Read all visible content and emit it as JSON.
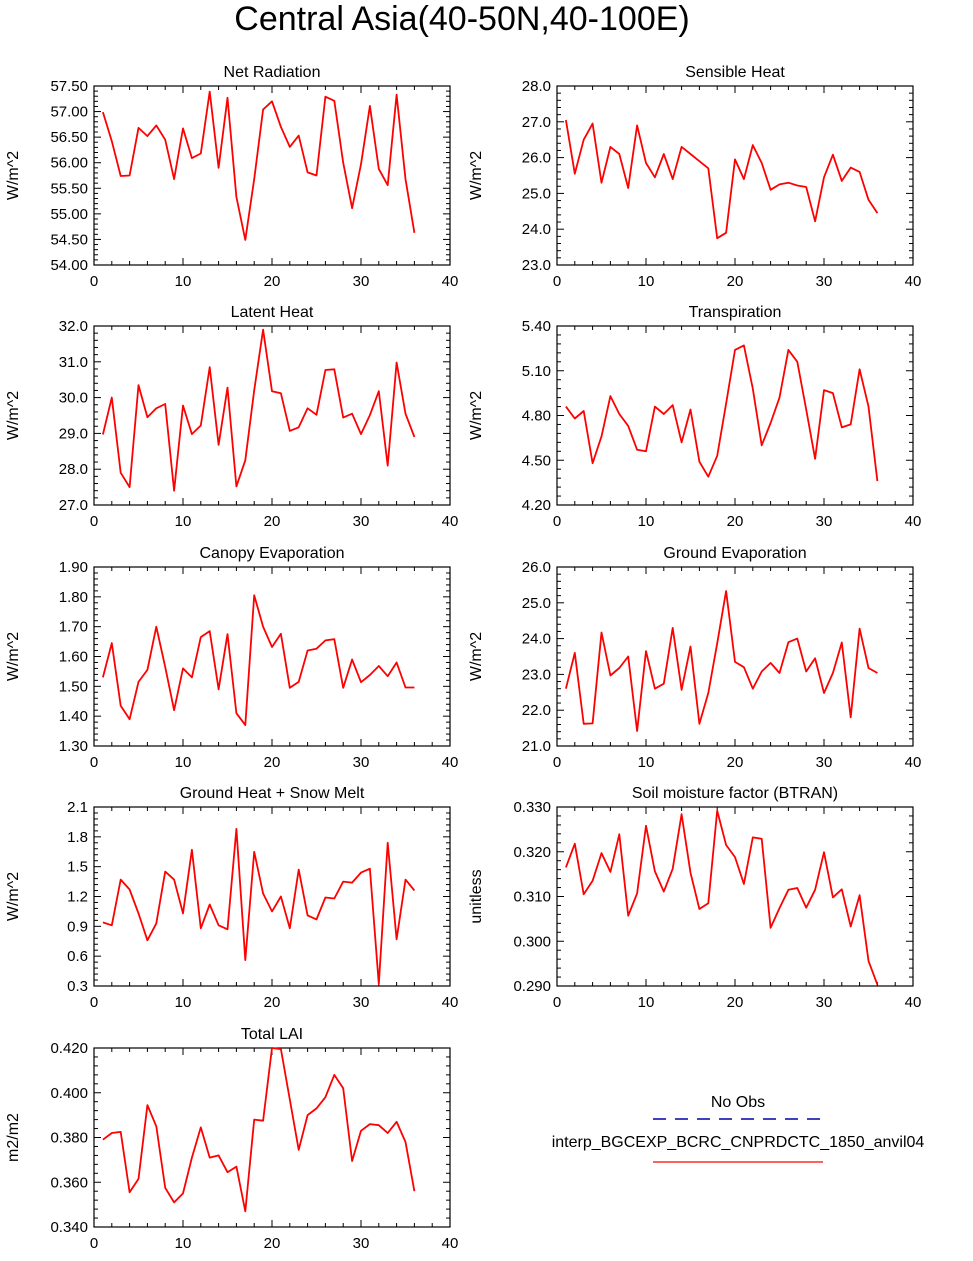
{
  "title": "Central Asia(40-50N,40-100E)",
  "line_color": "#ff0000",
  "legend": {
    "entries": [
      {
        "label": "No Obs",
        "color": "#0000aa",
        "style": "dashed"
      },
      {
        "label": "interp_BGCEXP_BCRC_CNPRDCTC_1850_anvil04",
        "color": "#ff0000",
        "style": "solid"
      }
    ]
  },
  "chart_data": [
    {
      "type": "line",
      "title": "Net Radiation",
      "ylabel": "W/m^2",
      "xlim": [
        0,
        40
      ],
      "ylim": [
        54.0,
        57.5
      ],
      "xticks": [
        0,
        10,
        20,
        30,
        40
      ],
      "yticks": [
        54.0,
        54.5,
        55.0,
        55.5,
        56.0,
        56.5,
        57.0,
        57.5
      ],
      "ytick_labels": [
        "54.00",
        "54.50",
        "55.00",
        "55.50",
        "56.00",
        "56.50",
        "57.00",
        "57.50"
      ],
      "x": [
        1,
        2,
        3,
        4,
        5,
        6,
        7,
        8,
        9,
        10,
        11,
        12,
        13,
        14,
        15,
        16,
        17,
        18,
        19,
        20,
        21,
        22,
        23,
        24,
        25,
        26,
        27,
        28,
        29,
        30,
        31,
        32,
        33,
        34,
        35,
        36
      ],
      "values": [
        56.99,
        56.42,
        55.74,
        55.75,
        56.68,
        56.52,
        56.73,
        56.45,
        55.68,
        56.67,
        56.09,
        56.18,
        57.39,
        55.9,
        57.27,
        55.33,
        54.49,
        55.68,
        57.04,
        57.2,
        56.7,
        56.31,
        56.53,
        55.81,
        55.75,
        57.29,
        57.21,
        56.0,
        55.11,
        55.97,
        57.11,
        55.88,
        55.56,
        57.33,
        55.68,
        54.63
      ]
    },
    {
      "type": "line",
      "title": "Sensible Heat",
      "ylabel": "W/m^2",
      "xlim": [
        0,
        40
      ],
      "ylim": [
        23.0,
        28.0
      ],
      "xticks": [
        0,
        10,
        20,
        30,
        40
      ],
      "yticks": [
        23.0,
        24.0,
        25.0,
        26.0,
        27.0,
        28.0
      ],
      "ytick_labels": [
        "23.0",
        "24.0",
        "25.0",
        "26.0",
        "27.0",
        "28.0"
      ],
      "x": [
        1,
        2,
        3,
        4,
        5,
        6,
        7,
        8,
        9,
        10,
        11,
        12,
        13,
        14,
        15,
        16,
        17,
        18,
        19,
        20,
        21,
        22,
        23,
        24,
        25,
        26,
        27,
        28,
        29,
        30,
        31,
        32,
        33,
        34,
        35,
        36
      ],
      "values": [
        27.05,
        25.55,
        26.5,
        26.95,
        25.3,
        26.3,
        26.1,
        25.15,
        26.9,
        25.85,
        25.45,
        26.1,
        25.4,
        26.3,
        26.1,
        25.9,
        25.7,
        23.75,
        23.9,
        25.95,
        25.4,
        26.35,
        25.85,
        25.1,
        25.25,
        25.3,
        25.22,
        25.18,
        24.22,
        25.45,
        26.08,
        25.35,
        25.72,
        25.6,
        24.82,
        24.45
      ]
    },
    {
      "type": "line",
      "title": "Latent Heat",
      "ylabel": "W/m^2",
      "xlim": [
        0,
        40
      ],
      "ylim": [
        27.0,
        32.0
      ],
      "xticks": [
        0,
        10,
        20,
        30,
        40
      ],
      "yticks": [
        27.0,
        28.0,
        29.0,
        30.0,
        31.0,
        32.0
      ],
      "ytick_labels": [
        "27.0",
        "28.0",
        "29.0",
        "30.0",
        "31.0",
        "32.0"
      ],
      "x": [
        1,
        2,
        3,
        4,
        5,
        6,
        7,
        8,
        9,
        10,
        11,
        12,
        13,
        14,
        15,
        16,
        17,
        18,
        19,
        20,
        21,
        22,
        23,
        24,
        25,
        26,
        27,
        28,
        29,
        30,
        31,
        32,
        33,
        34,
        35,
        36
      ],
      "values": [
        28.97,
        30.0,
        27.9,
        27.5,
        30.35,
        29.45,
        29.7,
        29.82,
        27.4,
        29.78,
        28.98,
        29.22,
        30.85,
        28.68,
        30.28,
        27.52,
        28.25,
        30.2,
        31.9,
        30.18,
        30.12,
        29.07,
        29.17,
        29.7,
        29.52,
        30.77,
        30.79,
        29.44,
        29.55,
        28.98,
        29.51,
        30.18,
        28.1,
        30.98,
        29.55,
        28.9
      ]
    },
    {
      "type": "line",
      "title": "Transpiration",
      "ylabel": "W/m^2",
      "xlim": [
        0,
        40
      ],
      "ylim": [
        4.2,
        5.4
      ],
      "xticks": [
        0,
        10,
        20,
        30,
        40
      ],
      "yticks": [
        4.2,
        4.5,
        4.8,
        5.1,
        5.4
      ],
      "ytick_labels": [
        "4.20",
        "4.50",
        "4.80",
        "5.10",
        "5.40"
      ],
      "x": [
        1,
        2,
        3,
        4,
        5,
        6,
        7,
        8,
        9,
        10,
        11,
        12,
        13,
        14,
        15,
        16,
        17,
        18,
        19,
        20,
        21,
        22,
        23,
        24,
        25,
        26,
        27,
        28,
        29,
        30,
        31,
        32,
        33,
        34,
        35,
        36
      ],
      "values": [
        4.86,
        4.78,
        4.83,
        4.48,
        4.66,
        4.93,
        4.81,
        4.73,
        4.57,
        4.56,
        4.86,
        4.81,
        4.87,
        4.62,
        4.84,
        4.49,
        4.39,
        4.53,
        4.88,
        5.24,
        5.27,
        4.98,
        4.6,
        4.75,
        4.92,
        5.24,
        5.16,
        4.84,
        4.51,
        4.97,
        4.95,
        4.72,
        4.74,
        5.11,
        4.86,
        4.36
      ]
    },
    {
      "type": "line",
      "title": "Canopy Evaporation",
      "ylabel": "W/m^2",
      "xlim": [
        0,
        40
      ],
      "ylim": [
        1.3,
        1.9
      ],
      "xticks": [
        0,
        10,
        20,
        30,
        40
      ],
      "yticks": [
        1.3,
        1.4,
        1.5,
        1.6,
        1.7,
        1.8,
        1.9
      ],
      "ytick_labels": [
        "1.30",
        "1.40",
        "1.50",
        "1.60",
        "1.70",
        "1.80",
        "1.90"
      ],
      "x": [
        1,
        2,
        3,
        4,
        5,
        6,
        7,
        8,
        9,
        10,
        11,
        12,
        13,
        14,
        15,
        16,
        17,
        18,
        19,
        20,
        21,
        22,
        23,
        24,
        25,
        26,
        27,
        28,
        29,
        30,
        31,
        32,
        33,
        34,
        35,
        36
      ],
      "values": [
        1.53,
        1.645,
        1.435,
        1.39,
        1.515,
        1.555,
        1.7,
        1.565,
        1.42,
        1.56,
        1.53,
        1.665,
        1.685,
        1.49,
        1.675,
        1.41,
        1.37,
        1.805,
        1.7,
        1.632,
        1.676,
        1.495,
        1.515,
        1.62,
        1.626,
        1.654,
        1.658,
        1.495,
        1.59,
        1.514,
        1.538,
        1.568,
        1.534,
        1.58,
        1.496,
        1.496
      ]
    },
    {
      "type": "line",
      "title": "Ground Evaporation",
      "ylabel": "W/m^2",
      "xlim": [
        0,
        40
      ],
      "ylim": [
        21.0,
        26.0
      ],
      "xticks": [
        0,
        10,
        20,
        30,
        40
      ],
      "yticks": [
        21.0,
        22.0,
        23.0,
        24.0,
        25.0,
        26.0
      ],
      "ytick_labels": [
        "21.0",
        "22.0",
        "23.0",
        "24.0",
        "25.0",
        "26.0"
      ],
      "x": [
        1,
        2,
        3,
        4,
        5,
        6,
        7,
        8,
        9,
        10,
        11,
        12,
        13,
        14,
        15,
        16,
        17,
        18,
        19,
        20,
        21,
        22,
        23,
        24,
        25,
        26,
        27,
        28,
        29,
        30,
        31,
        32,
        33,
        34,
        35,
        36
      ],
      "values": [
        22.6,
        23.6,
        21.62,
        21.63,
        24.17,
        22.97,
        23.18,
        23.5,
        21.42,
        23.65,
        22.6,
        22.74,
        24.3,
        22.57,
        23.78,
        21.62,
        22.48,
        23.87,
        25.33,
        23.35,
        23.2,
        22.6,
        23.08,
        23.32,
        23.04,
        23.9,
        24.0,
        23.08,
        23.45,
        22.48,
        23.04,
        23.89,
        21.8,
        24.28,
        23.18,
        23.04
      ]
    },
    {
      "type": "line",
      "title": "Ground Heat + Snow Melt",
      "ylabel": "W/m^2",
      "xlim": [
        0,
        40
      ],
      "ylim": [
        0.3,
        2.1
      ],
      "xticks": [
        0,
        10,
        20,
        30,
        40
      ],
      "yticks": [
        0.3,
        0.6,
        0.9,
        1.2,
        1.5,
        1.8,
        2.1
      ],
      "ytick_labels": [
        "0.3",
        "0.6",
        "0.9",
        "1.2",
        "1.5",
        "1.8",
        "2.1"
      ],
      "x": [
        1,
        2,
        3,
        4,
        5,
        6,
        7,
        8,
        9,
        10,
        11,
        12,
        13,
        14,
        15,
        16,
        17,
        18,
        19,
        20,
        21,
        22,
        23,
        24,
        25,
        26,
        27,
        28,
        29,
        30,
        31,
        32,
        33,
        34,
        35,
        36
      ],
      "values": [
        0.94,
        0.91,
        1.37,
        1.27,
        1.03,
        0.76,
        0.93,
        1.45,
        1.37,
        1.03,
        1.67,
        0.88,
        1.12,
        0.91,
        0.87,
        1.88,
        0.56,
        1.65,
        1.23,
        1.05,
        1.2,
        0.88,
        1.47,
        1.01,
        0.97,
        1.19,
        1.18,
        1.35,
        1.34,
        1.44,
        1.48,
        0.32,
        1.74,
        0.77,
        1.37,
        1.26
      ]
    },
    {
      "type": "line",
      "title": "Soil moisture factor (BTRAN)",
      "ylabel": "unitless",
      "xlim": [
        0,
        40
      ],
      "ylim": [
        0.29,
        0.33
      ],
      "xticks": [
        0,
        10,
        20,
        30,
        40
      ],
      "yticks": [
        0.29,
        0.3,
        0.31,
        0.32,
        0.33
      ],
      "ytick_labels": [
        "0.290",
        "0.300",
        "0.310",
        "0.320",
        "0.330"
      ],
      "x": [
        1,
        2,
        3,
        4,
        5,
        6,
        7,
        8,
        9,
        10,
        11,
        12,
        13,
        14,
        15,
        16,
        17,
        18,
        19,
        20,
        21,
        22,
        23,
        24,
        25,
        26,
        27,
        28,
        29,
        30,
        31,
        32,
        33,
        34,
        35,
        36
      ],
      "values": [
        0.3165,
        0.3218,
        0.3105,
        0.3135,
        0.3197,
        0.3155,
        0.3239,
        0.3057,
        0.3107,
        0.3258,
        0.3156,
        0.3111,
        0.3162,
        0.3284,
        0.3153,
        0.3072,
        0.3085,
        0.3292,
        0.3215,
        0.3188,
        0.3128,
        0.3232,
        0.3229,
        0.303,
        0.3074,
        0.3115,
        0.3119,
        0.3075,
        0.3115,
        0.3199,
        0.3098,
        0.3116,
        0.3033,
        0.3103,
        0.2956,
        0.2903
      ]
    },
    {
      "type": "line",
      "title": "Total LAI",
      "ylabel": "m2/m2",
      "xlim": [
        0,
        40
      ],
      "ylim": [
        0.34,
        0.42
      ],
      "xticks": [
        0,
        10,
        20,
        30,
        40
      ],
      "yticks": [
        0.34,
        0.36,
        0.38,
        0.4,
        0.42
      ],
      "ytick_labels": [
        "0.340",
        "0.360",
        "0.380",
        "0.400",
        "0.420"
      ],
      "x": [
        1,
        2,
        3,
        4,
        5,
        6,
        7,
        8,
        9,
        10,
        11,
        12,
        13,
        14,
        15,
        16,
        17,
        18,
        19,
        20,
        21,
        22,
        23,
        24,
        25,
        26,
        27,
        28,
        29,
        30,
        31,
        32,
        33,
        34,
        35,
        36
      ],
      "values": [
        0.379,
        0.382,
        0.3825,
        0.3555,
        0.3615,
        0.3945,
        0.385,
        0.3575,
        0.351,
        0.355,
        0.371,
        0.3845,
        0.371,
        0.372,
        0.3645,
        0.367,
        0.347,
        0.388,
        0.3875,
        0.42,
        0.4195,
        0.397,
        0.3745,
        0.39,
        0.393,
        0.398,
        0.408,
        0.402,
        0.3695,
        0.383,
        0.386,
        0.3855,
        0.382,
        0.387,
        0.378,
        0.356
      ]
    }
  ]
}
